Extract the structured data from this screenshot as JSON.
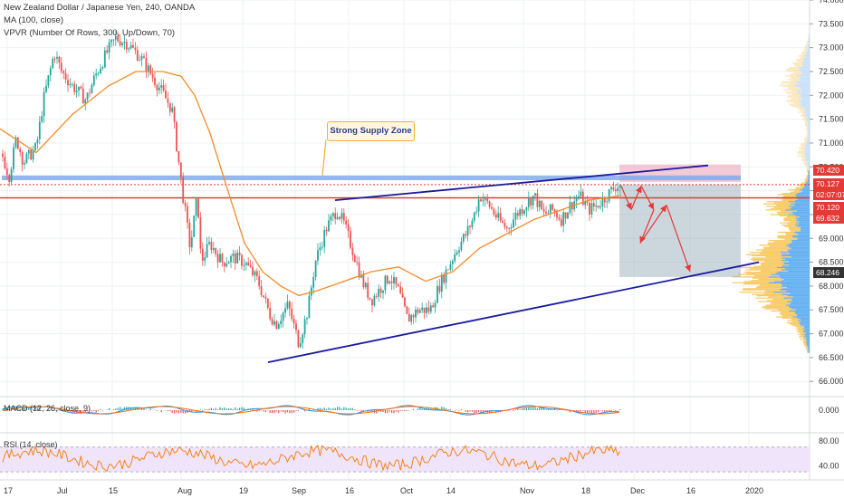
{
  "header": {
    "title": "New Zealand Dollar / Japanese Yen, 240, OANDA",
    "ma_label": "MA (100, close)",
    "vpvr_label": "VPVR (Number Of Rows, 300, Up/Down, 70)"
  },
  "annotation": "Strong Supply Zone",
  "price_tags": [
    {
      "value": "70.420",
      "color": "#e53935"
    },
    {
      "value": "70.127",
      "color": "#e53935"
    },
    {
      "value": "02:07:07",
      "color": "#e53935"
    },
    {
      "value": "70.120",
      "color": "#e53935"
    },
    {
      "value": "69.632",
      "color": "#e53935"
    },
    {
      "value": "68.246",
      "color": "#333333"
    }
  ],
  "macd": {
    "label": "MACD (12, 26, close, 9)",
    "axis": [
      "0.000"
    ]
  },
  "rsi": {
    "label": "RSI (14, close)",
    "axis": [
      "80.00",
      "40.00"
    ]
  },
  "colors": {
    "up": "#26a69a",
    "down": "#ef5350",
    "ma": "#f28c28",
    "trend": "#1a1aa0",
    "supply": "#7aa7e8",
    "hline": "#e53935",
    "arrow": "#e53935",
    "vpvr_up": "#f7c24e",
    "vpvr_down": "#4aa3ef",
    "rsi_band": "#f0e4fb",
    "rsi_line": "#f57c00"
  },
  "chart_data": {
    "type": "candlestick",
    "ylim": [
      65.7,
      74.0
    ],
    "y_ticks": [
      66.0,
      66.5,
      67.0,
      67.5,
      68.0,
      68.5,
      69.0,
      69.5,
      70.0,
      70.5,
      71.0,
      71.5,
      72.0,
      72.5,
      73.0,
      73.5,
      74.0
    ],
    "y_tick_labels": [
      "66.000",
      "66.500",
      "67.000",
      "67.500",
      "68.000",
      "68.500",
      "69.000",
      "69.500",
      "70.000",
      "70.500",
      "71.000",
      "71.500",
      "72.000",
      "72.500",
      "73.000",
      "73.500",
      "74.000"
    ],
    "x_labels": [
      "17",
      "Jul",
      "15",
      "Aug",
      "19",
      "Sep",
      "16",
      "Oct",
      "14",
      "Nov",
      "18",
      "Dec",
      "16",
      "2020"
    ],
    "anchors": [
      [
        0,
        70.9
      ],
      [
        10,
        70.3
      ],
      [
        18,
        71.1
      ],
      [
        26,
        70.6
      ],
      [
        40,
        70.9
      ],
      [
        48,
        71.9
      ],
      [
        60,
        72.9
      ],
      [
        68,
        72.5
      ],
      [
        80,
        72.2
      ],
      [
        95,
        71.9
      ],
      [
        105,
        72.4
      ],
      [
        118,
        72.9
      ],
      [
        128,
        73.2
      ],
      [
        140,
        73.1
      ],
      [
        155,
        72.8
      ],
      [
        165,
        72.5
      ],
      [
        178,
        72.1
      ],
      [
        190,
        71.7
      ],
      [
        198,
        70.5
      ],
      [
        202,
        69.9
      ],
      [
        210,
        68.8
      ],
      [
        218,
        69.9
      ],
      [
        222,
        68.5
      ],
      [
        232,
        68.9
      ],
      [
        245,
        68.5
      ],
      [
        258,
        68.6
      ],
      [
        270,
        68.5
      ],
      [
        285,
        68.1
      ],
      [
        298,
        67.4
      ],
      [
        305,
        67.2
      ],
      [
        318,
        67.6
      ],
      [
        330,
        66.8
      ],
      [
        340,
        67.5
      ],
      [
        348,
        68.5
      ],
      [
        360,
        69.2
      ],
      [
        372,
        69.6
      ],
      [
        380,
        69.3
      ],
      [
        392,
        68.6
      ],
      [
        400,
        68.1
      ],
      [
        410,
        67.7
      ],
      [
        422,
        68.0
      ],
      [
        430,
        68.2
      ],
      [
        440,
        67.9
      ],
      [
        450,
        67.3
      ],
      [
        462,
        67.5
      ],
      [
        475,
        67.5
      ],
      [
        485,
        68.0
      ],
      [
        495,
        68.4
      ],
      [
        505,
        68.8
      ],
      [
        515,
        69.1
      ],
      [
        522,
        69.4
      ],
      [
        530,
        69.9
      ],
      [
        540,
        69.7
      ],
      [
        550,
        69.4
      ],
      [
        560,
        69.2
      ],
      [
        570,
        69.5
      ],
      [
        580,
        69.7
      ],
      [
        590,
        69.9
      ],
      [
        600,
        69.5
      ],
      [
        610,
        69.6
      ],
      [
        620,
        69.4
      ],
      [
        630,
        69.7
      ],
      [
        640,
        69.9
      ],
      [
        650,
        69.6
      ],
      [
        660,
        69.7
      ],
      [
        670,
        69.9
      ],
      [
        680,
        70.1
      ],
      [
        686,
        70.12
      ]
    ],
    "ma_points": [
      [
        0,
        71.3
      ],
      [
        40,
        70.8
      ],
      [
        80,
        71.6
      ],
      [
        120,
        72.2
      ],
      [
        150,
        72.5
      ],
      [
        180,
        72.5
      ],
      [
        200,
        72.4
      ],
      [
        215,
        72.0
      ],
      [
        232,
        71.2
      ],
      [
        250,
        70.1
      ],
      [
        270,
        68.9
      ],
      [
        290,
        68.3
      ],
      [
        310,
        68.0
      ],
      [
        330,
        67.8
      ],
      [
        350,
        67.9
      ],
      [
        380,
        68.1
      ],
      [
        410,
        68.3
      ],
      [
        440,
        68.4
      ],
      [
        470,
        68.1
      ],
      [
        500,
        68.3
      ],
      [
        530,
        68.8
      ],
      [
        560,
        69.1
      ],
      [
        590,
        69.4
      ],
      [
        620,
        69.6
      ],
      [
        650,
        69.8
      ],
      [
        686,
        69.9
      ]
    ],
    "supply_zone": [
      70.22,
      70.32
    ],
    "upper_trendline": {
      "x": [
        370,
        782
      ],
      "y": [
        69.8,
        70.53
      ]
    },
    "lower_trendline": {
      "x": [
        296,
        838
      ],
      "y": [
        66.4,
        68.5
      ]
    },
    "horizontal_line": 69.85,
    "target_box": {
      "x": [
        684,
        818
      ],
      "y_top": 70.13,
      "y_bottom": 68.19
    },
    "target_box_upper": {
      "x": [
        684,
        818
      ],
      "y_top": 70.55,
      "y_bottom": 70.18
    },
    "projection": {
      "x": [
        686,
        697,
        708,
        722,
        707,
        736,
        762,
        840
      ],
      "y": [
        70.1,
        69.6,
        70.1,
        69.6,
        68.9,
        69.7,
        68.3,
        68.5
      ]
    },
    "macd_pane": {
      "ylim": [
        -1,
        1
      ],
      "ticks": [
        "0.000"
      ]
    },
    "rsi_pane": {
      "ylim": [
        20,
        90
      ],
      "band": [
        30,
        70
      ],
      "ticks": [
        80,
        40
      ]
    }
  }
}
